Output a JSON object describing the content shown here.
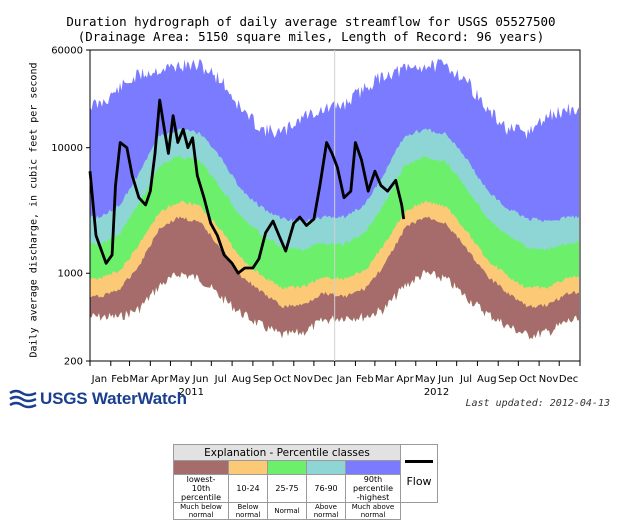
{
  "chart_data": {
    "type": "area",
    "title": "Duration hydrograph of daily average streamflow for USGS 05527500",
    "subtitle": "(Drainage Area: 5150 square miles, Length of Record: 96 years)",
    "ylabel": "Daily average discharge, in cubic feet per second",
    "y_scale": "log",
    "ylim": [
      200,
      60000
    ],
    "y_ticks": [
      "60000",
      "10000",
      "1000",
      "200"
    ],
    "x_tick_labels": [
      "Jan",
      "Feb",
      "Mar",
      "Apr",
      "May",
      "Jun",
      "Jul",
      "Aug",
      "Sep",
      "Oct",
      "Nov",
      "Dec",
      "Jan",
      "Feb",
      "Mar",
      "Apr",
      "May",
      "Jun",
      "Jul",
      "Aug",
      "Sep",
      "Oct",
      "Nov",
      "Dec"
    ],
    "years": [
      "2011",
      "2012"
    ],
    "months": [
      "2011-01",
      "2011-02",
      "2011-03",
      "2011-04",
      "2011-05",
      "2011-06",
      "2011-07",
      "2011-08",
      "2011-09",
      "2011-10",
      "2011-11",
      "2011-12",
      "2012-01",
      "2012-02",
      "2012-03",
      "2012-04",
      "2012-05",
      "2012-06",
      "2012-07",
      "2012-08",
      "2012-09",
      "2012-10",
      "2012-11",
      "2012-12"
    ],
    "percentile_bands": {
      "p10": [
        650,
        750,
        1150,
        2300,
        2800,
        2500,
        1600,
        950,
        700,
        540,
        560,
        700,
        650,
        750,
        1150,
        2300,
        2800,
        2500,
        1600,
        950,
        700,
        540,
        560,
        700
      ],
      "p25": [
        900,
        1050,
        1700,
        3100,
        3700,
        3400,
        2200,
        1300,
        950,
        760,
        780,
        930,
        900,
        1050,
        1700,
        3100,
        3700,
        3400,
        2200,
        1300,
        950,
        760,
        780,
        930
      ],
      "p75": [
        1700,
        2100,
        3600,
        7200,
        8500,
        7700,
        4800,
        2800,
        2000,
        1600,
        1550,
        1750,
        1700,
        2100,
        3600,
        7200,
        8500,
        7700,
        4800,
        2800,
        2000,
        1600,
        1550,
        1750
      ],
      "p90": [
        2800,
        3500,
        6300,
        12500,
        14000,
        13000,
        8300,
        4600,
        3300,
        2700,
        2600,
        2800,
        2800,
        3500,
        6300,
        12500,
        14000,
        13000,
        8300,
        4600,
        3300,
        2700,
        2600,
        2800
      ],
      "max": [
        22000,
        30000,
        38000,
        42000,
        45000,
        45000,
        35000,
        20000,
        14000,
        13000,
        18000,
        20000,
        22000,
        30000,
        38000,
        42000,
        45000,
        45000,
        35000,
        20000,
        14000,
        13000,
        18000,
        20000
      ],
      "min": [
        450,
        450,
        520,
        800,
        1000,
        900,
        650,
        480,
        380,
        320,
        340,
        420,
        450,
        450,
        520,
        800,
        1000,
        900,
        650,
        480,
        380,
        320,
        340,
        420
      ]
    },
    "flow_series": {
      "x": [
        "2011-01-01",
        "2011-01-10",
        "2011-01-25",
        "2011-02-03",
        "2011-02-08",
        "2011-02-15",
        "2011-02-25",
        "2011-03-05",
        "2011-03-15",
        "2011-03-25",
        "2011-04-01",
        "2011-04-08",
        "2011-04-15",
        "2011-04-22",
        "2011-04-28",
        "2011-05-05",
        "2011-05-12",
        "2011-05-20",
        "2011-05-27",
        "2011-06-03",
        "2011-06-10",
        "2011-06-20",
        "2011-06-30",
        "2011-07-10",
        "2011-07-20",
        "2011-08-01",
        "2011-08-10",
        "2011-08-20",
        "2011-09-01",
        "2011-09-10",
        "2011-09-20",
        "2011-10-01",
        "2011-10-10",
        "2011-10-20",
        "2011-11-01",
        "2011-11-10",
        "2011-11-20",
        "2011-12-01",
        "2011-12-10",
        "2011-12-20",
        "2011-12-28",
        "2012-01-05",
        "2012-01-15",
        "2012-01-25",
        "2012-02-01",
        "2012-02-10",
        "2012-02-20",
        "2012-03-01",
        "2012-03-10",
        "2012-03-20",
        "2012-04-01",
        "2012-04-10",
        "2012-04-13"
      ],
      "y": [
        6500,
        2000,
        1200,
        1400,
        5000,
        11000,
        10000,
        6000,
        4000,
        3500,
        4500,
        9000,
        24000,
        14000,
        9000,
        18000,
        11000,
        14000,
        10000,
        12000,
        6000,
        4000,
        2500,
        2000,
        1400,
        1200,
        1000,
        1100,
        1100,
        1300,
        2100,
        2600,
        2000,
        1500,
        2500,
        2800,
        2400,
        2700,
        5000,
        11000,
        9000,
        7000,
        4000,
        4500,
        11000,
        8000,
        4500,
        6500,
        5000,
        4500,
        5500,
        3500,
        2700
      ]
    },
    "legend": {
      "title": "Explanation - Percentile classes",
      "classes": [
        {
          "label": "lowest-\n10th percentile",
          "desc": "Much below\nnormal",
          "color": "#a66b6b"
        },
        {
          "label": "10-24",
          "desc": "Below\nnormal",
          "color": "#fcc976"
        },
        {
          "label": "25-75",
          "desc": "Normal",
          "color": "#6cf06c"
        },
        {
          "label": "76-90",
          "desc": "Above\nnormal",
          "color": "#8ed6d6"
        },
        {
          "label": "90th percentile\n-highest",
          "desc": "Much above\nnormal",
          "color": "#7b7bff"
        }
      ],
      "flow_label": "Flow",
      "flow_color": "#000000"
    }
  },
  "logo": {
    "text": "USGS WaterWatch",
    "icon": "usgs-wave-icon",
    "color": "#1a3f91"
  },
  "last_updated": "Last updated: 2012-04-13",
  "today_marker_date": "2012-01-01"
}
